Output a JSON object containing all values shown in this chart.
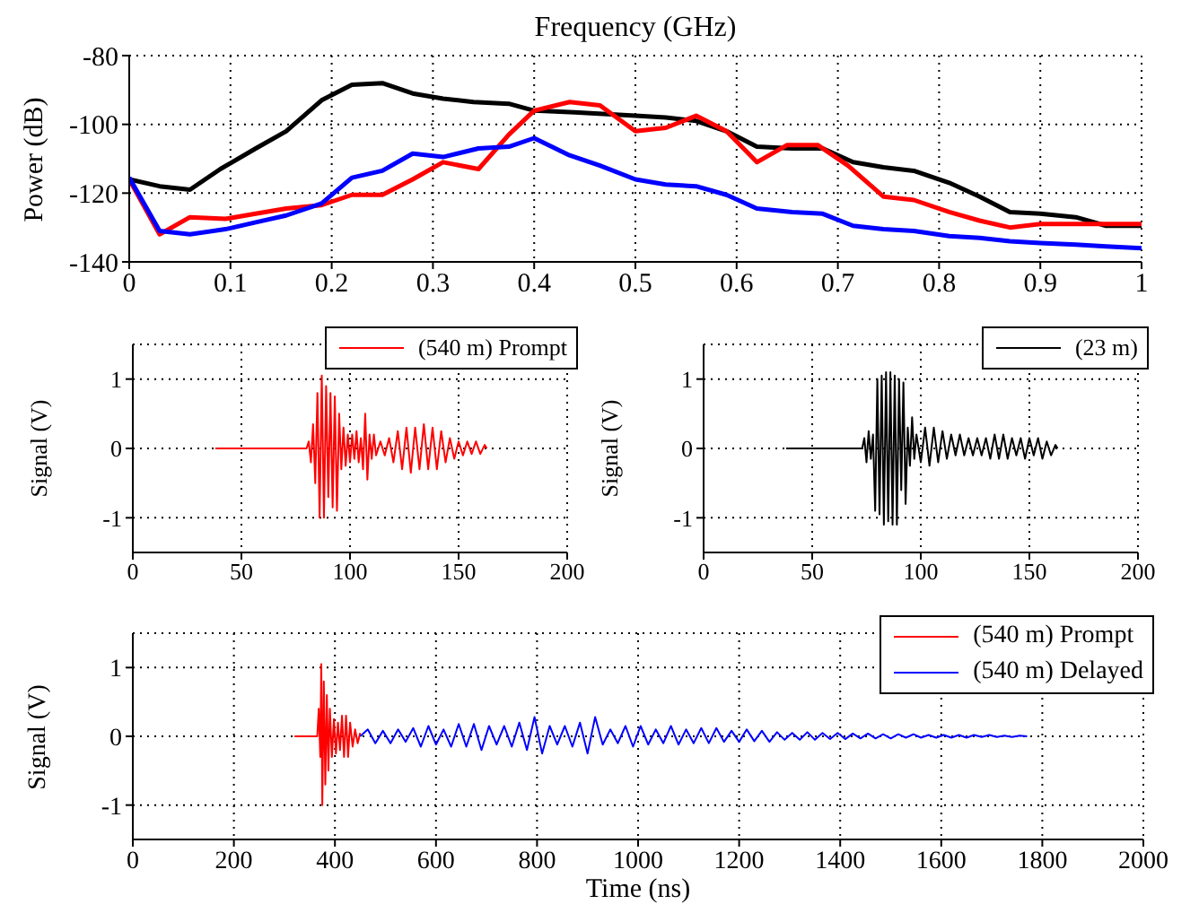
{
  "chart_data": [
    {
      "type": "line",
      "xlabel": "Frequency (GHz)",
      "ylabel": "Power (dB)",
      "xlim": [
        0,
        1
      ],
      "xticks": [
        0,
        0.1,
        0.2,
        0.3,
        0.4,
        0.5,
        0.6,
        0.7,
        0.8,
        0.9,
        1
      ],
      "ylim": [
        -140,
        -80
      ],
      "yticks": [
        -140,
        -120,
        -100,
        -80
      ],
      "grid": true,
      "series": [
        {
          "color": "#000000",
          "x": [
            0,
            0.03,
            0.06,
            0.09,
            0.125,
            0.155,
            0.19,
            0.22,
            0.25,
            0.28,
            0.31,
            0.34,
            0.375,
            0.4,
            0.44,
            0.5,
            0.53,
            0.56,
            0.59,
            0.62,
            0.655,
            0.685,
            0.715,
            0.745,
            0.775,
            0.81,
            0.84,
            0.87,
            0.9,
            0.935,
            0.965,
            1
          ],
          "values": [
            -116,
            -118,
            -119,
            -113,
            -107,
            -102,
            -93,
            -88.5,
            -88,
            -91,
            -92.5,
            -93.5,
            -94,
            -96,
            -96.5,
            -97.5,
            -98,
            -99,
            -102,
            -106.5,
            -107,
            -107,
            -111,
            -112.5,
            -113.5,
            -117,
            -121,
            -125.5,
            -126,
            -127,
            -129.5,
            -129.5
          ]
        },
        {
          "color": "#ff0000",
          "x": [
            0,
            0.03,
            0.06,
            0.095,
            0.125,
            0.155,
            0.19,
            0.22,
            0.25,
            0.28,
            0.31,
            0.345,
            0.375,
            0.4,
            0.435,
            0.465,
            0.5,
            0.53,
            0.56,
            0.59,
            0.62,
            0.65,
            0.68,
            0.71,
            0.745,
            0.775,
            0.81,
            0.84,
            0.87,
            0.9,
            0.935,
            0.965,
            1
          ],
          "values": [
            -116,
            -132,
            -127,
            -127.5,
            -126,
            -124.5,
            -123.5,
            -120.5,
            -120.5,
            -116,
            -111,
            -113,
            -103,
            -96,
            -93.5,
            -94.5,
            -102,
            -101,
            -97.5,
            -102,
            -111,
            -106,
            -106,
            -112,
            -121,
            -122,
            -125.5,
            -128,
            -130,
            -129,
            -129,
            -129,
            -129
          ]
        },
        {
          "color": "#0000ff",
          "x": [
            0,
            0.03,
            0.06,
            0.095,
            0.125,
            0.155,
            0.19,
            0.22,
            0.25,
            0.28,
            0.31,
            0.345,
            0.375,
            0.4,
            0.435,
            0.465,
            0.5,
            0.53,
            0.56,
            0.59,
            0.62,
            0.655,
            0.685,
            0.715,
            0.745,
            0.775,
            0.81,
            0.84,
            0.87,
            0.9,
            0.935,
            0.965,
            1
          ],
          "values": [
            -115.5,
            -131,
            -132,
            -130.5,
            -128.5,
            -126.5,
            -123,
            -115.5,
            -113.5,
            -108.5,
            -109.5,
            -107,
            -106.5,
            -104,
            -109,
            -112,
            -116,
            -117.5,
            -118,
            -120.5,
            -124.5,
            -125.5,
            -126,
            -129.5,
            -130.5,
            -131,
            -132.5,
            -133,
            -134,
            -134.5,
            -135,
            -135.5,
            -136
          ]
        }
      ]
    },
    {
      "type": "line",
      "ylabel": "Signal (V)",
      "xlim": [
        0,
        200
      ],
      "xticks": [
        0,
        50,
        100,
        150,
        200
      ],
      "ylim": [
        -1.5,
        1.5
      ],
      "yticks": [
        -1,
        0,
        1
      ],
      "grid": true,
      "legend": "top right",
      "series": [
        {
          "name": "(540 m) Prompt",
          "color": "#ff0000",
          "x": [
            38,
            80,
            81,
            82,
            83,
            84,
            85,
            86,
            87,
            88,
            89,
            90,
            91,
            92,
            93,
            94,
            95,
            96,
            97,
            98,
            99,
            100,
            101,
            102,
            103,
            104,
            105,
            106,
            107,
            108,
            109,
            110,
            111,
            112,
            114,
            116,
            118,
            120,
            122,
            124,
            126,
            128,
            130,
            132,
            134,
            136,
            138,
            140,
            142,
            144,
            146,
            148,
            150,
            152,
            154,
            156,
            158,
            160,
            162,
            163
          ],
          "values": [
            0,
            0,
            0.1,
            -0.2,
            0.35,
            -0.5,
            0.8,
            -1.0,
            1.05,
            -1.0,
            0.9,
            -0.7,
            0.8,
            -0.85,
            0.75,
            -0.9,
            0.5,
            -0.3,
            0.3,
            -0.25,
            0.2,
            -0.2,
            0.2,
            -0.15,
            0.25,
            -0.2,
            0.15,
            -0.3,
            0.5,
            -0.45,
            0.2,
            -0.15,
            0.2,
            -0.1,
            0.1,
            -0.1,
            0.15,
            -0.2,
            0.25,
            -0.3,
            0.3,
            -0.35,
            0.3,
            -0.3,
            0.35,
            -0.3,
            0.3,
            -0.3,
            0.25,
            -0.2,
            0.15,
            -0.15,
            0.1,
            -0.1,
            0.1,
            -0.08,
            0.1,
            -0.08,
            0.05,
            0
          ]
        }
      ]
    },
    {
      "type": "line",
      "ylabel": "Signal (V)",
      "xlim": [
        0,
        200
      ],
      "xticks": [
        0,
        50,
        100,
        150,
        200
      ],
      "ylim": [
        -1.5,
        1.5
      ],
      "yticks": [
        -1,
        0,
        1
      ],
      "grid": true,
      "legend": "top right",
      "series": [
        {
          "name": "(23 m)",
          "color": "#000000",
          "x": [
            38,
            73,
            74,
            75,
            76,
            77,
            78,
            79,
            80,
            81,
            82,
            83,
            84,
            85,
            86,
            87,
            88,
            89,
            90,
            91,
            92,
            93,
            94,
            95,
            96,
            97,
            98,
            100,
            102,
            104,
            106,
            108,
            110,
            112,
            114,
            116,
            118,
            120,
            122,
            124,
            126,
            128,
            130,
            132,
            134,
            136,
            138,
            140,
            142,
            144,
            146,
            148,
            150,
            152,
            154,
            156,
            158,
            160,
            162,
            163
          ],
          "values": [
            0,
            0,
            0.15,
            -0.2,
            0.25,
            -0.15,
            0.2,
            -0.9,
            1.0,
            -0.95,
            1.05,
            -1.1,
            1.1,
            -1.05,
            1.1,
            -1.1,
            1.05,
            -1.1,
            1.0,
            -0.6,
            0.95,
            -0.8,
            0.3,
            -0.25,
            0.45,
            -0.15,
            0.2,
            -0.2,
            0.3,
            -0.25,
            0.3,
            -0.2,
            0.25,
            -0.15,
            0.2,
            -0.1,
            0.2,
            -0.1,
            0.15,
            -0.1,
            0.15,
            -0.1,
            0.15,
            -0.15,
            0.2,
            -0.15,
            0.2,
            -0.15,
            0.15,
            -0.1,
            0.15,
            -0.15,
            0.15,
            -0.1,
            0.15,
            -0.15,
            0.1,
            -0.1,
            0.05,
            0
          ]
        }
      ]
    },
    {
      "type": "line",
      "xlabel": "Time (ns)",
      "ylabel": "Signal (V)",
      "xlim": [
        0,
        2000
      ],
      "xticks": [
        0,
        200,
        400,
        600,
        800,
        1000,
        1200,
        1400,
        1600,
        1800,
        2000
      ],
      "ylim": [
        -1.5,
        1.5
      ],
      "yticks": [
        -1,
        0,
        1
      ],
      "grid": true,
      "legend": "top right",
      "series": [
        {
          "name": "(540 m) Prompt",
          "color": "#ff0000",
          "x": [
            320,
            365,
            368,
            371,
            373,
            375,
            378,
            381,
            384,
            387,
            390,
            394,
            398,
            402,
            406,
            410,
            414,
            418,
            422,
            426,
            430,
            435,
            440,
            445,
            450
          ],
          "values": [
            0,
            0,
            0.4,
            -0.3,
            1.05,
            -1.0,
            0.8,
            -0.7,
            0.6,
            -0.5,
            0.4,
            -0.3,
            0.25,
            -0.25,
            0.2,
            -0.2,
            0.3,
            -0.3,
            0.3,
            -0.3,
            0.2,
            -0.15,
            0.1,
            -0.1,
            0.05
          ]
        },
        {
          "name": "(540 m) Delayed",
          "color": "#0000ff",
          "x": [
            450,
            465,
            480,
            495,
            510,
            525,
            540,
            555,
            570,
            585,
            600,
            615,
            630,
            645,
            660,
            675,
            690,
            705,
            720,
            735,
            750,
            765,
            780,
            795,
            810,
            825,
            840,
            855,
            870,
            885,
            900,
            915,
            930,
            945,
            960,
            975,
            990,
            1005,
            1020,
            1035,
            1050,
            1065,
            1080,
            1095,
            1110,
            1125,
            1140,
            1155,
            1170,
            1185,
            1200,
            1215,
            1230,
            1245,
            1260,
            1275,
            1290,
            1305,
            1320,
            1335,
            1350,
            1365,
            1380,
            1395,
            1410,
            1425,
            1440,
            1455,
            1470,
            1485,
            1500,
            1515,
            1530,
            1545,
            1560,
            1575,
            1590,
            1605,
            1620,
            1635,
            1650,
            1665,
            1680,
            1695,
            1710,
            1725,
            1740,
            1755,
            1770
          ],
          "values": [
            0,
            0.1,
            -0.1,
            0.08,
            -0.1,
            0.1,
            -0.08,
            0.12,
            -0.15,
            0.15,
            -0.12,
            0.1,
            -0.15,
            0.18,
            -0.15,
            0.18,
            -0.2,
            0.15,
            -0.12,
            0.15,
            -0.15,
            0.2,
            -0.2,
            0.28,
            -0.25,
            0.15,
            -0.12,
            0.15,
            -0.15,
            0.2,
            -0.25,
            0.28,
            -0.12,
            0.1,
            -0.1,
            0.15,
            -0.15,
            0.15,
            -0.12,
            0.1,
            -0.1,
            0.15,
            -0.12,
            0.1,
            -0.1,
            0.12,
            -0.1,
            0.12,
            -0.08,
            0.08,
            -0.08,
            0.1,
            -0.07,
            0.08,
            -0.08,
            0.06,
            -0.05,
            0.05,
            -0.05,
            0.06,
            -0.05,
            0.05,
            -0.04,
            0.05,
            -0.04,
            0.04,
            -0.03,
            0.04,
            -0.03,
            0.03,
            -0.03,
            0.03,
            -0.02,
            0.03,
            -0.02,
            0.02,
            -0.02,
            0.02,
            -0.02,
            0.02,
            -0.02,
            0.02,
            -0.01,
            0.02,
            -0.01,
            0.01,
            -0.01,
            0.01,
            0
          ]
        }
      ]
    }
  ]
}
